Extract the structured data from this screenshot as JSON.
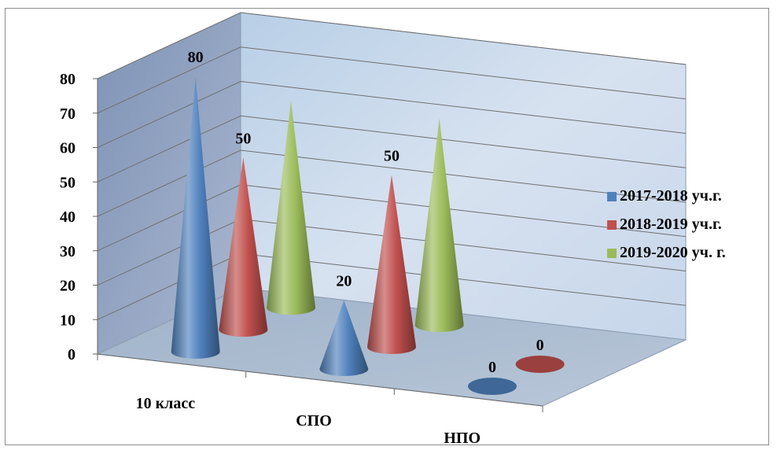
{
  "chart_data": {
    "type": "bar",
    "style": "3d-cone",
    "categories": [
      "10 класс",
      "СПО",
      "НПО"
    ],
    "series": [
      {
        "name": "2017-2018 уч.г.",
        "color": "#4f81bd",
        "values": [
          80,
          20,
          0
        ]
      },
      {
        "name": "2018-2019 уч.г.",
        "color": "#c0504d",
        "values": [
          50,
          50,
          0
        ]
      },
      {
        "name": "2019-2020 уч. г.",
        "color": "#9bbb59",
        "values": [
          60,
          60,
          null
        ]
      }
    ],
    "data_labels": [
      {
        "series": 0,
        "category": 0,
        "text": "80"
      },
      {
        "series": 0,
        "category": 1,
        "text": "20"
      },
      {
        "series": 0,
        "category": 2,
        "text": "0"
      },
      {
        "series": 1,
        "category": 0,
        "text": "50"
      },
      {
        "series": 1,
        "category": 1,
        "text": "50"
      },
      {
        "series": 1,
        "category": 2,
        "text": "0"
      }
    ],
    "yticks": [
      "0",
      "10",
      "20",
      "30",
      "40",
      "50",
      "60",
      "70",
      "80"
    ],
    "ylim": [
      0,
      80
    ],
    "grid": true,
    "legend_position": "right",
    "title": "",
    "xlabel": "",
    "ylabel": ""
  }
}
